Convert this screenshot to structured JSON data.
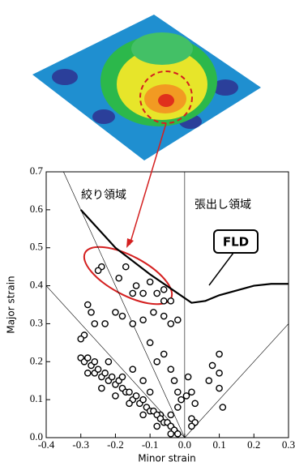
{
  "chart_data": {
    "type": "scatter",
    "xlabel": "Minor strain",
    "ylabel": "Major strain",
    "xlim": [
      -0.4,
      0.3
    ],
    "ylim": [
      0,
      0.7
    ],
    "xticks": [
      -0.4,
      -0.3,
      -0.2,
      -0.1,
      {
        "value": 0,
        "label": "0.0"
      },
      0.1,
      0.2,
      0.3
    ],
    "yticks": [
      {
        "value": 0,
        "label": "0.0"
      },
      0.1,
      0.2,
      0.3,
      0.4,
      0.5,
      0.6,
      0.7
    ],
    "annotations": [
      "絞り領域",
      "張出し領域"
    ],
    "reference_lines": [
      {
        "x": [
          0,
          -0.4
        ],
        "y": [
          0,
          0.4
        ]
      },
      {
        "x": [
          0,
          -0.35
        ],
        "y": [
          0,
          0.7
        ]
      },
      {
        "x": [
          0,
          0.3
        ],
        "y": [
          0,
          0.3
        ]
      },
      {
        "x": [
          0,
          0
        ],
        "y": [
          0,
          0.7
        ]
      }
    ],
    "series": [
      {
        "color": "#000000",
        "marker": "open-circle",
        "x": [
          -0.24,
          -0.25,
          -0.17,
          -0.19,
          -0.14,
          -0.15,
          -0.12,
          -0.1,
          -0.08,
          -0.06,
          -0.04,
          -0.06,
          -0.28,
          -0.27,
          -0.26,
          -0.29,
          -0.3,
          -0.23,
          -0.2,
          -0.18,
          -0.15,
          -0.12,
          -0.09,
          -0.06,
          -0.04,
          -0.02,
          -0.1,
          -0.08,
          -0.06,
          -0.04,
          -0.03,
          -0.02,
          -0.01,
          -0.02,
          0.005,
          0.02,
          0.01,
          0.03,
          0.02,
          0.03,
          0.02,
          0.1,
          0.1,
          0.1,
          0.08,
          0.07,
          0.11,
          -0.15,
          -0.12,
          -0.1,
          -0.07,
          -0.04,
          -0.3,
          -0.29,
          -0.28,
          -0.27,
          -0.26,
          -0.26,
          -0.25,
          -0.24,
          -0.23,
          -0.22,
          -0.22,
          -0.21,
          -0.2,
          -0.19,
          -0.18,
          -0.18,
          -0.17,
          -0.16,
          -0.15,
          -0.14,
          -0.13,
          -0.12,
          -0.11,
          -0.1,
          -0.09,
          -0.08,
          -0.07,
          -0.06,
          -0.05,
          -0.04,
          -0.03,
          -0.02,
          -0.28,
          -0.24,
          -0.2,
          -0.16,
          -0.12,
          -0.08,
          -0.04
        ],
        "values": [
          0.45,
          0.44,
          0.45,
          0.42,
          0.4,
          0.38,
          0.38,
          0.41,
          0.38,
          0.39,
          0.36,
          0.36,
          0.35,
          0.33,
          0.3,
          0.27,
          0.26,
          0.3,
          0.33,
          0.32,
          0.3,
          0.31,
          0.33,
          0.32,
          0.3,
          0.31,
          0.25,
          0.2,
          0.22,
          0.18,
          0.15,
          0.12,
          0.1,
          0.08,
          0.11,
          0.12,
          0.16,
          0.09,
          0.05,
          0.04,
          0.03,
          0.13,
          0.17,
          0.22,
          0.19,
          0.15,
          0.08,
          0.18,
          0.15,
          0.12,
          0.06,
          0.06,
          0.21,
          0.2,
          0.21,
          0.19,
          0.2,
          0.17,
          0.18,
          0.16,
          0.17,
          0.2,
          0.15,
          0.16,
          0.14,
          0.15,
          0.13,
          0.16,
          0.12,
          0.12,
          0.1,
          0.11,
          0.09,
          0.1,
          0.08,
          0.07,
          0.07,
          0.06,
          0.05,
          0.04,
          0.04,
          0.03,
          0.02,
          0.01,
          0.17,
          0.13,
          0.11,
          0.09,
          0.06,
          0.03,
          0.01
        ]
      },
      {
        "name": "FLD",
        "kind": "line",
        "color": "#000000",
        "x": [
          -0.3,
          -0.2,
          -0.1,
          -0.02,
          0.02,
          0.06,
          0.1,
          0.2,
          0.25,
          0.3
        ],
        "values": [
          0.6,
          0.5,
          0.43,
          0.38,
          0.355,
          0.36,
          0.375,
          0.4,
          0.405,
          0.405
        ]
      }
    ]
  }
}
